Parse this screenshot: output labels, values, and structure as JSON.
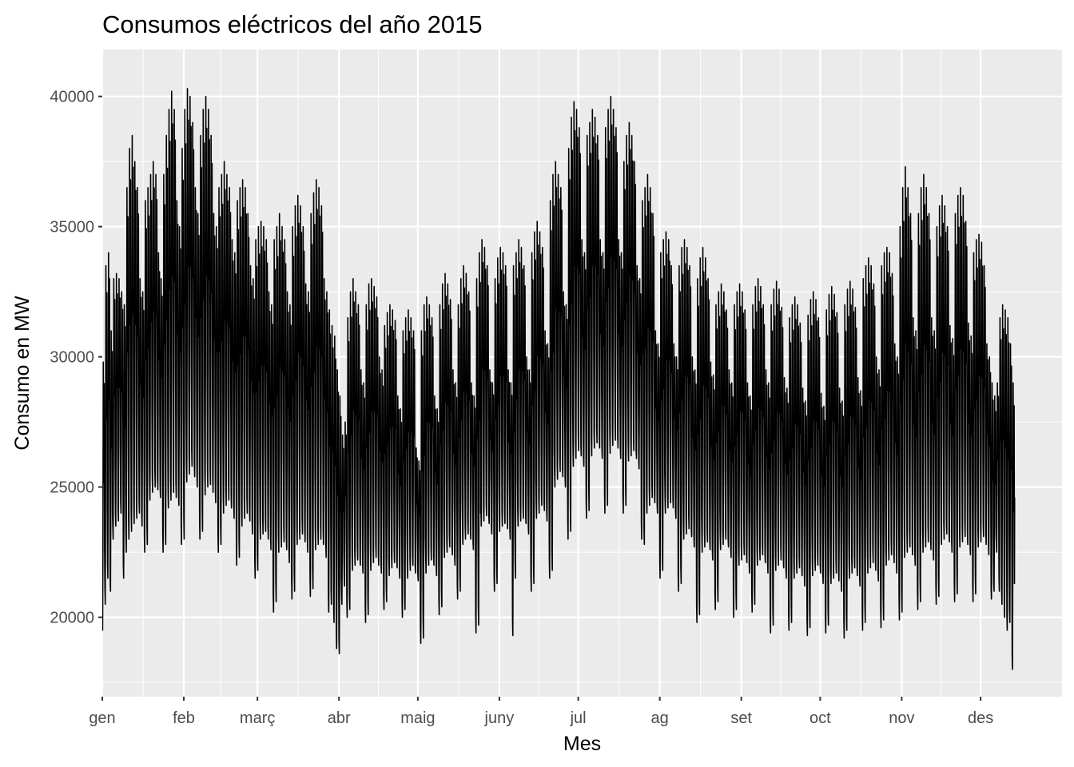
{
  "chart_data": {
    "type": "line",
    "title": "Consumos eléctricos del año 2015",
    "xlabel": "Mes",
    "ylabel": "Consumo en MW",
    "x_unit": "day of year 2015",
    "xlim": [
      0,
      364.96
    ],
    "ylim": [
      16950,
      41800
    ],
    "y_ticks": [
      20000,
      25000,
      30000,
      35000,
      40000
    ],
    "x_ticks": [
      {
        "label": "gen",
        "day": 0
      },
      {
        "label": "feb",
        "day": 31
      },
      {
        "label": "març",
        "day": 59
      },
      {
        "label": "abr",
        "day": 90
      },
      {
        "label": "maig",
        "day": 120
      },
      {
        "label": "juny",
        "day": 151
      },
      {
        "label": "jul",
        "day": 181
      },
      {
        "label": "ag",
        "day": 212
      },
      {
        "label": "set",
        "day": 243
      },
      {
        "label": "oct",
        "day": 273
      },
      {
        "label": "nov",
        "day": 304
      },
      {
        "label": "des",
        "day": 334
      }
    ],
    "grid": true,
    "line_color": "#000000",
    "panel_background": "#ebebeb",
    "grid_color": "#ffffff",
    "series": [
      {
        "sampling": "hourly, summarized as daily min and max",
        "daily_min": [
          19500,
          20500,
          21500,
          21000,
          23000,
          23500,
          23700,
          24000,
          21500,
          22500,
          23000,
          23300,
          23600,
          23800,
          24000,
          23500,
          22500,
          22800,
          24500,
          24800,
          25000,
          24900,
          24600,
          22500,
          22800,
          24200,
          24500,
          24800,
          24600,
          24300,
          22800,
          23000,
          25200,
          25500,
          25800,
          25400,
          25000,
          23000,
          23300,
          24700,
          25000,
          25100,
          24800,
          24400,
          22500,
          22800,
          24000,
          24300,
          24500,
          24200,
          23800,
          22000,
          22300,
          23500,
          23800,
          24000,
          23700,
          23200,
          21500,
          21800,
          23000,
          23200,
          23300,
          23000,
          22600,
          20200,
          20600,
          22500,
          22700,
          22900,
          22600,
          22100,
          20700,
          21000,
          22800,
          23000,
          23200,
          22900,
          22500,
          20800,
          21100,
          22600,
          22800,
          23000,
          22800,
          22300,
          20200,
          20500,
          19800,
          18800,
          18600,
          20500,
          21200,
          20000,
          20300,
          21800,
          22000,
          22200,
          22000,
          21700,
          19800,
          20100,
          21800,
          22100,
          22300,
          22000,
          21700,
          20300,
          20600,
          21600,
          21900,
          22100,
          21900,
          21500,
          20000,
          20300,
          21500,
          21800,
          22000,
          21700,
          21400,
          19000,
          19200,
          21700,
          22000,
          22200,
          22000,
          21600,
          20100,
          20400,
          22300,
          22500,
          22700,
          22400,
          22000,
          20700,
          21000,
          22800,
          23000,
          23200,
          23000,
          22600,
          19400,
          19700,
          23500,
          23700,
          23900,
          23600,
          23200,
          21000,
          21300,
          23300,
          23500,
          23600,
          23400,
          23000,
          19300,
          21500,
          23500,
          23700,
          23800,
          23600,
          23200,
          21000,
          21300,
          23800,
          24000,
          24300,
          24100,
          23700,
          21500,
          21800,
          25000,
          25300,
          25600,
          25400,
          25000,
          23000,
          23300,
          25800,
          26100,
          26400,
          26200,
          25800,
          23800,
          24100,
          26200,
          26500,
          26700,
          26500,
          26100,
          24000,
          24300,
          26300,
          26600,
          26800,
          26500,
          26100,
          24000,
          24300,
          26000,
          26200,
          26400,
          26100,
          25700,
          23000,
          22800,
          24000,
          24300,
          24600,
          24400,
          24000,
          21500,
          21800,
          24000,
          24200,
          24400,
          24200,
          23800,
          21000,
          21300,
          23000,
          23200,
          23400,
          23100,
          22700,
          19800,
          20100,
          22500,
          22700,
          22900,
          22600,
          22200,
          20300,
          20600,
          22600,
          22800,
          23000,
          22700,
          22300,
          20000,
          20300,
          22000,
          22200,
          22400,
          22100,
          21700,
          20200,
          20500,
          22000,
          22200,
          22400,
          22100,
          21700,
          19400,
          19700,
          21800,
          22000,
          22200,
          21900,
          21500,
          19500,
          19800,
          21500,
          21700,
          21900,
          21600,
          21200,
          19300,
          19600,
          21600,
          21800,
          22000,
          21700,
          21300,
          19400,
          19700,
          21300,
          21500,
          21700,
          21400,
          21000,
          19200,
          19500,
          21500,
          21700,
          21900,
          21600,
          21200,
          19500,
          19800,
          21700,
          21900,
          22100,
          21800,
          21400,
          19600,
          19900,
          22000,
          22200,
          22400,
          22100,
          21700,
          19900,
          20200,
          22300,
          22500,
          22700,
          22400,
          22000,
          20300,
          20600,
          22500,
          22700,
          22900,
          22600,
          22200,
          20500,
          20800,
          22800,
          23000,
          23200,
          22900,
          22500,
          20600,
          20900,
          22700,
          22900,
          23100,
          22800,
          22400,
          20600,
          20900,
          22700,
          22900,
          23100,
          22800,
          22400,
          20700,
          21000,
          22500,
          21000,
          20500,
          20000,
          19500,
          19800,
          18000,
          18300,
          19800,
          20500,
          21500,
          20000,
          19500,
          19800
        ],
        "daily_max": [
          29800,
          33500,
          34000,
          31000,
          33000,
          33200,
          33000,
          32500,
          32000,
          36500,
          38000,
          38500,
          37500,
          36500,
          33000,
          32500,
          36000,
          36500,
          37000,
          37500,
          37000,
          34000,
          33000,
          37000,
          38500,
          39500,
          40200,
          39500,
          36000,
          35000,
          38000,
          39500,
          40300,
          40000,
          39000,
          36500,
          35500,
          38500,
          39500,
          40000,
          39500,
          38500,
          35500,
          35000,
          36500,
          37000,
          37500,
          37000,
          36500,
          34500,
          34000,
          36000,
          36500,
          36800,
          36500,
          35500,
          33500,
          33000,
          34500,
          35000,
          35200,
          35000,
          34500,
          32500,
          32000,
          34500,
          35000,
          35500,
          35000,
          34500,
          32500,
          32000,
          35000,
          35800,
          36200,
          35800,
          35000,
          32800,
          32500,
          35500,
          36300,
          36800,
          36500,
          35800,
          33000,
          32500,
          31800,
          31200,
          30800,
          29500,
          28500,
          27000,
          27500,
          31500,
          32500,
          33000,
          32500,
          32000,
          29500,
          29000,
          32000,
          32800,
          33000,
          32700,
          32300,
          30000,
          29500,
          31200,
          31700,
          32000,
          31800,
          31400,
          28500,
          28000,
          31000,
          31500,
          31800,
          31500,
          31000,
          26500,
          26000,
          31000,
          32000,
          32300,
          32000,
          31500,
          28500,
          28000,
          32000,
          32800,
          33200,
          32800,
          32200,
          29500,
          29000,
          32000,
          33000,
          33500,
          33200,
          32500,
          29000,
          28500,
          33000,
          34000,
          34500,
          34200,
          33500,
          29500,
          29000,
          33000,
          33800,
          34200,
          34000,
          33500,
          29500,
          29000,
          33500,
          34000,
          34500,
          34200,
          33500,
          30000,
          29500,
          34000,
          34800,
          35200,
          34800,
          34200,
          31000,
          30500,
          36000,
          37000,
          37500,
          37000,
          36500,
          32500,
          32000,
          38000,
          39200,
          39800,
          39500,
          38800,
          34500,
          34000,
          38500,
          39000,
          39500,
          39200,
          38500,
          34500,
          34000,
          38800,
          39500,
          40000,
          39500,
          38800,
          34500,
          34000,
          37500,
          38500,
          39000,
          38500,
          37500,
          33500,
          33000,
          36000,
          36500,
          37000,
          36500,
          35500,
          31000,
          30500,
          34000,
          34500,
          34800,
          34500,
          33500,
          30500,
          30000,
          33500,
          34200,
          34500,
          34200,
          33500,
          30000,
          29500,
          33000,
          33800,
          34200,
          33800,
          33000,
          29800,
          29300,
          32000,
          32500,
          32800,
          32500,
          31800,
          29500,
          29000,
          32000,
          32500,
          32800,
          32500,
          31800,
          29000,
          28500,
          32000,
          32700,
          33000,
          32700,
          32000,
          29500,
          29000,
          32000,
          32600,
          32900,
          32600,
          31900,
          29200,
          28800,
          31500,
          32000,
          32300,
          32000,
          31300,
          28800,
          28300,
          31600,
          32200,
          32500,
          32200,
          31500,
          28600,
          28100,
          31800,
          32400,
          32700,
          32400,
          31700,
          28800,
          28300,
          32000,
          32600,
          32900,
          32600,
          31900,
          29200,
          28700,
          33000,
          33500,
          33800,
          33500,
          32800,
          30000,
          29500,
          33500,
          34000,
          34200,
          34000,
          33200,
          30500,
          30000,
          35000,
          36500,
          37300,
          36500,
          35500,
          31500,
          31000,
          35500,
          36500,
          37000,
          36500,
          35500,
          31500,
          31000,
          35000,
          35800,
          36200,
          35800,
          35000,
          31200,
          30700,
          35500,
          36200,
          36500,
          36200,
          35200,
          31300,
          30800,
          34000,
          34500,
          34700,
          34400,
          33500,
          30500,
          30000,
          29000,
          28500,
          29000,
          31500,
          32000,
          31800,
          31500,
          30500,
          29000
        ]
      }
    ]
  }
}
